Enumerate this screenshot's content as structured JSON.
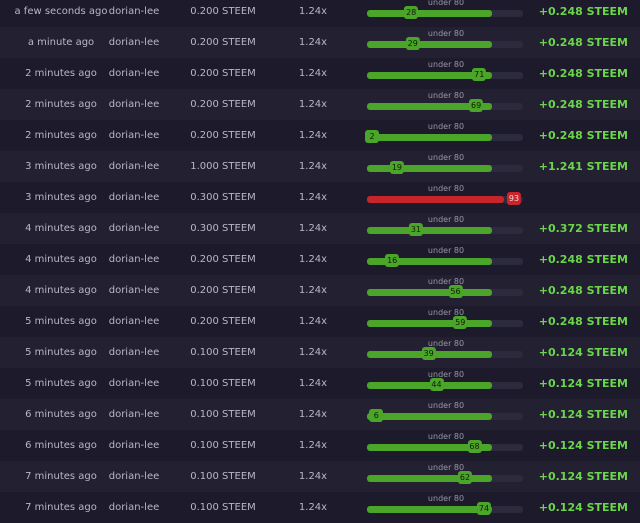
{
  "colors": {
    "win": "#6ad64a",
    "win_bar": "#4ba528",
    "loss_bar": "#c8252b",
    "track": "#2c2a3d"
  },
  "rows": [
    {
      "time": "a few seconds ago",
      "user": "dorian-lee",
      "bet": "0.200 STEEM",
      "multiplier": "1.24x",
      "target": "under 80",
      "roll": 28,
      "result": "win",
      "payout": "+0.248 STEEM"
    },
    {
      "time": "a minute ago",
      "user": "dorian-lee",
      "bet": "0.200 STEEM",
      "multiplier": "1.24x",
      "target": "under 80",
      "roll": 29,
      "result": "win",
      "payout": "+0.248 STEEM"
    },
    {
      "time": "2 minutes ago",
      "user": "dorian-lee",
      "bet": "0.200 STEEM",
      "multiplier": "1.24x",
      "target": "under 80",
      "roll": 71,
      "result": "win",
      "payout": "+0.248 STEEM"
    },
    {
      "time": "2 minutes ago",
      "user": "dorian-lee",
      "bet": "0.200 STEEM",
      "multiplier": "1.24x",
      "target": "under 80",
      "roll": 69,
      "result": "win",
      "payout": "+0.248 STEEM"
    },
    {
      "time": "2 minutes ago",
      "user": "dorian-lee",
      "bet": "0.200 STEEM",
      "multiplier": "1.24x",
      "target": "under 80",
      "roll": 2,
      "result": "win",
      "payout": "+0.248 STEEM"
    },
    {
      "time": "3 minutes ago",
      "user": "dorian-lee",
      "bet": "1.000 STEEM",
      "multiplier": "1.24x",
      "target": "under 80",
      "roll": 19,
      "result": "win",
      "payout": "+1.241 STEEM"
    },
    {
      "time": "3 minutes ago",
      "user": "dorian-lee",
      "bet": "0.300 STEEM",
      "multiplier": "1.24x",
      "target": "under 80",
      "roll": 93,
      "result": "loss",
      "payout": ""
    },
    {
      "time": "4 minutes ago",
      "user": "dorian-lee",
      "bet": "0.300 STEEM",
      "multiplier": "1.24x",
      "target": "under 80",
      "roll": 31,
      "result": "win",
      "payout": "+0.372 STEEM"
    },
    {
      "time": "4 minutes ago",
      "user": "dorian-lee",
      "bet": "0.200 STEEM",
      "multiplier": "1.24x",
      "target": "under 80",
      "roll": 16,
      "result": "win",
      "payout": "+0.248 STEEM"
    },
    {
      "time": "4 minutes ago",
      "user": "dorian-lee",
      "bet": "0.200 STEEM",
      "multiplier": "1.24x",
      "target": "under 80",
      "roll": 56,
      "result": "win",
      "payout": "+0.248 STEEM"
    },
    {
      "time": "5 minutes ago",
      "user": "dorian-lee",
      "bet": "0.200 STEEM",
      "multiplier": "1.24x",
      "target": "under 80",
      "roll": 59,
      "result": "win",
      "payout": "+0.248 STEEM"
    },
    {
      "time": "5 minutes ago",
      "user": "dorian-lee",
      "bet": "0.100 STEEM",
      "multiplier": "1.24x",
      "target": "under 80",
      "roll": 39,
      "result": "win",
      "payout": "+0.124 STEEM"
    },
    {
      "time": "5 minutes ago",
      "user": "dorian-lee",
      "bet": "0.100 STEEM",
      "multiplier": "1.24x",
      "target": "under 80",
      "roll": 44,
      "result": "win",
      "payout": "+0.124 STEEM"
    },
    {
      "time": "6 minutes ago",
      "user": "dorian-lee",
      "bet": "0.100 STEEM",
      "multiplier": "1.24x",
      "target": "under 80",
      "roll": 6,
      "result": "win",
      "payout": "+0.124 STEEM"
    },
    {
      "time": "6 minutes ago",
      "user": "dorian-lee",
      "bet": "0.100 STEEM",
      "multiplier": "1.24x",
      "target": "under 80",
      "roll": 68,
      "result": "win",
      "payout": "+0.124 STEEM"
    },
    {
      "time": "7 minutes ago",
      "user": "dorian-lee",
      "bet": "0.100 STEEM",
      "multiplier": "1.24x",
      "target": "under 80",
      "roll": 62,
      "result": "win",
      "payout": "+0.124 STEEM"
    },
    {
      "time": "7 minutes ago",
      "user": "dorian-lee",
      "bet": "0.100 STEEM",
      "multiplier": "1.24x",
      "target": "under 80",
      "roll": 74,
      "result": "win",
      "payout": "+0.124 STEEM"
    }
  ]
}
